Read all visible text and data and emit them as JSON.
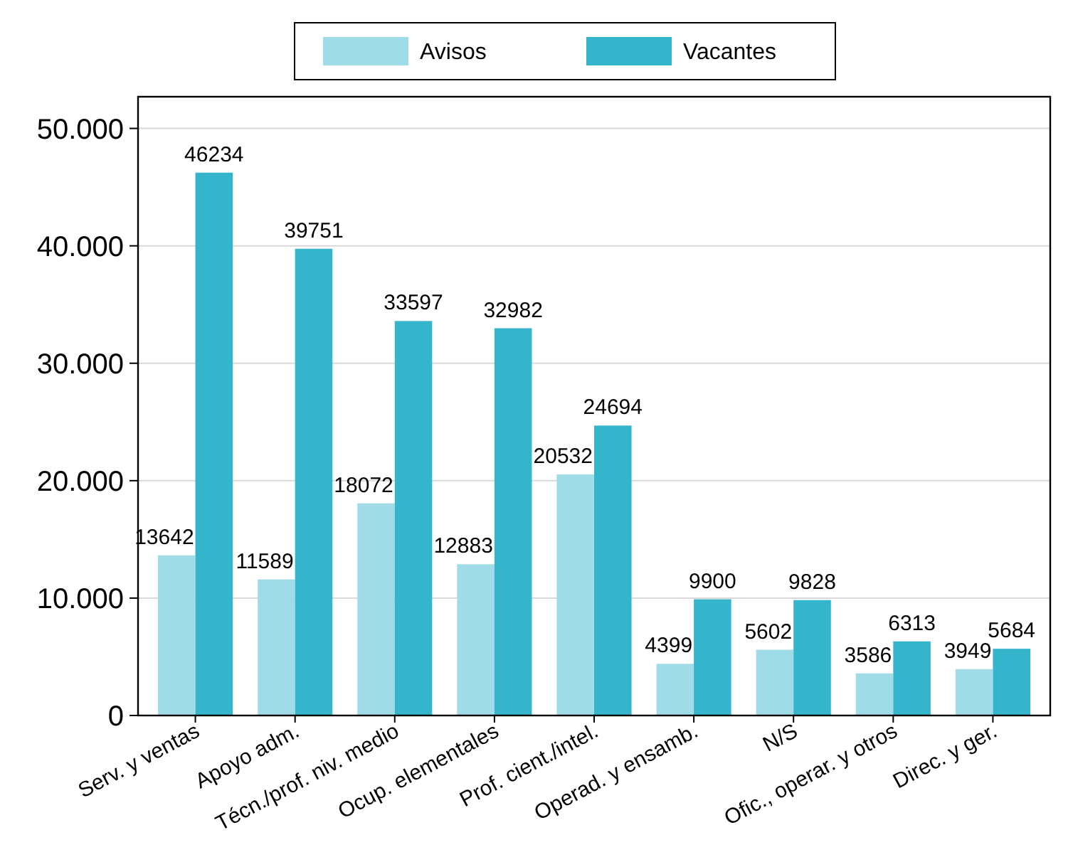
{
  "chart_data": {
    "type": "bar",
    "categories": [
      "Serv. y ventas",
      "Apoyo adm.",
      "Técn./prof. niv. medio",
      "Ocup. elementales",
      "Prof. cient./intel.",
      "Operad. y ensamb.",
      "N/S",
      "Ofic., operar. y otros",
      "Direc. y ger."
    ],
    "series": [
      {
        "name": "Avisos",
        "color": "#a0dce8",
        "values": [
          13642,
          11589,
          18072,
          12883,
          20532,
          4399,
          5602,
          3586,
          3949
        ]
      },
      {
        "name": "Vacantes",
        "color": "#35b5cc",
        "values": [
          46234,
          39751,
          33597,
          32982,
          24694,
          9900,
          9828,
          6313,
          5684
        ]
      }
    ],
    "ylim": [
      0,
      52700
    ],
    "yticks": [
      0,
      {
        "value": 10000,
        "label": "10.000"
      },
      {
        "value": 20000,
        "label": "20.000"
      },
      {
        "value": 30000,
        "label": "30.000"
      },
      {
        "value": 40000,
        "label": "40.000"
      },
      {
        "value": 50000,
        "label": "50.000"
      }
    ],
    "grid": "y",
    "legend": "top",
    "data_labels": true
  }
}
